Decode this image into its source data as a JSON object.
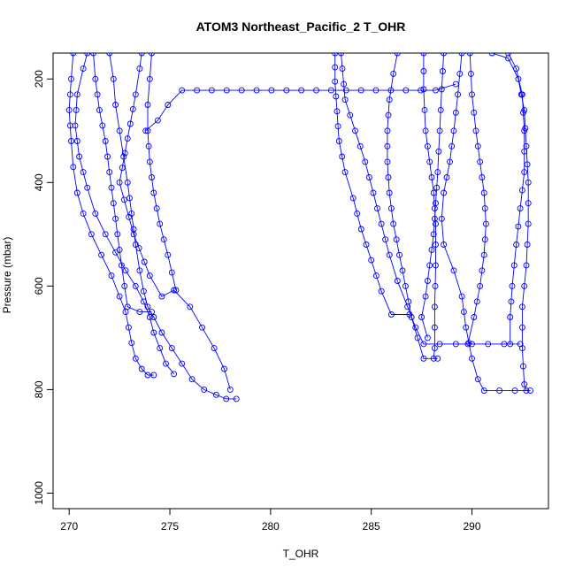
{
  "chart_data": {
    "type": "line",
    "title": "ATOM3 Northeast_Pacific_2 T_OHR",
    "xlabel": "T_OHR",
    "ylabel": "Pressure (mbar)",
    "xlim": [
      269.2,
      293.8
    ],
    "ylim": [
      1030,
      150
    ],
    "y_reversed": true,
    "xticks": [
      270,
      275,
      280,
      285,
      290
    ],
    "yticks": [
      200,
      400,
      600,
      800,
      1000
    ],
    "grid": false,
    "marker": "open-circle",
    "color": "#0000ff",
    "series": [
      {
        "points": [
          [
            270.2,
            150
          ],
          [
            270.1,
            200
          ],
          [
            270.0,
            260
          ],
          [
            270.1,
            320
          ],
          [
            270.2,
            370
          ],
          [
            270.4,
            420
          ],
          [
            270.7,
            460
          ],
          [
            271.1,
            500
          ],
          [
            271.6,
            540
          ],
          [
            272.1,
            580
          ],
          [
            272.5,
            620
          ],
          [
            272.8,
            650
          ],
          [
            272.95,
            680
          ],
          [
            273.1,
            710
          ],
          [
            273.3,
            740
          ],
          [
            273.6,
            760
          ],
          [
            273.9,
            772
          ],
          [
            274.2,
            772
          ]
        ]
      },
      {
        "points": [
          [
            270.9,
            150
          ],
          [
            270.7,
            180
          ],
          [
            270.4,
            230
          ],
          [
            270.3,
            290
          ],
          [
            270.5,
            350
          ],
          [
            270.9,
            410
          ],
          [
            271.3,
            460
          ],
          [
            271.8,
            500
          ],
          [
            272.3,
            535
          ],
          [
            272.8,
            570
          ],
          [
            273.3,
            600
          ],
          [
            273.7,
            630
          ],
          [
            274.0,
            660
          ],
          [
            274.2,
            690
          ],
          [
            274.5,
            720
          ],
          [
            274.8,
            750
          ],
          [
            275.2,
            770
          ]
        ]
      },
      {
        "points": [
          [
            271.2,
            150
          ],
          [
            271.3,
            200
          ],
          [
            271.5,
            260
          ],
          [
            271.8,
            320
          ],
          [
            272.0,
            380
          ],
          [
            272.2,
            440
          ],
          [
            272.4,
            500
          ],
          [
            272.6,
            560
          ],
          [
            272.75,
            600
          ],
          [
            272.9,
            640
          ],
          [
            273.5,
            650
          ],
          [
            274.1,
            650
          ]
        ]
      },
      {
        "points": [
          [
            272.0,
            150
          ],
          [
            272.2,
            200
          ],
          [
            272.3,
            250
          ],
          [
            272.5,
            300
          ],
          [
            272.7,
            350
          ],
          [
            272.9,
            400
          ],
          [
            273.1,
            460
          ],
          [
            273.3,
            520
          ],
          [
            273.5,
            570
          ],
          [
            273.7,
            610
          ],
          [
            273.9,
            640
          ],
          [
            274.2,
            660
          ],
          [
            274.6,
            690
          ],
          [
            275.1,
            720
          ],
          [
            275.6,
            750
          ],
          [
            276.1,
            780
          ],
          [
            276.7,
            800
          ],
          [
            277.3,
            810
          ],
          [
            277.8,
            818
          ],
          [
            278.3,
            818
          ]
        ]
      },
      {
        "points": [
          [
            273.6,
            150
          ],
          [
            273.5,
            180
          ],
          [
            273.3,
            230
          ],
          [
            272.5,
            400
          ],
          [
            273.2,
            500
          ],
          [
            274.0,
            580
          ],
          [
            274.6,
            620
          ],
          [
            275.2,
            608
          ],
          [
            276.0,
            640
          ],
          [
            276.6,
            680
          ],
          [
            277.2,
            720
          ],
          [
            277.7,
            760
          ],
          [
            278.0,
            800
          ]
        ]
      },
      {
        "points": [
          [
            274.1,
            150
          ],
          [
            274.0,
            200
          ],
          [
            273.9,
            250
          ],
          [
            273.9,
            300
          ],
          [
            274.0,
            360
          ],
          [
            274.2,
            420
          ],
          [
            274.5,
            480
          ],
          [
            274.9,
            540
          ],
          [
            275.3,
            608
          ]
        ]
      },
      {
        "points": [
          [
            273.8,
            300
          ],
          [
            274.4,
            280
          ],
          [
            274.9,
            250
          ],
          [
            275.6,
            222
          ],
          [
            288.2,
            222
          ],
          [
            289.2,
            210
          ]
        ]
      },
      {
        "points": [
          [
            283.2,
            150
          ],
          [
            283.2,
            205
          ],
          [
            283.4,
            320
          ],
          [
            283.7,
            380
          ],
          [
            284.1,
            430
          ],
          [
            284.5,
            490
          ],
          [
            285.0,
            550
          ],
          [
            285.5,
            610
          ],
          [
            286.0,
            655
          ],
          [
            286.9,
            655
          ]
        ]
      },
      {
        "points": [
          [
            283.5,
            150
          ],
          [
            283.7,
            240
          ],
          [
            284.2,
            300
          ],
          [
            284.7,
            360
          ],
          [
            285.1,
            420
          ],
          [
            285.5,
            480
          ],
          [
            285.9,
            540
          ],
          [
            286.3,
            590
          ],
          [
            286.8,
            640
          ],
          [
            287.2,
            680
          ],
          [
            287.6,
            712
          ],
          [
            292.4,
            712
          ]
        ]
      },
      {
        "points": [
          [
            286.3,
            150
          ],
          [
            286.1,
            190
          ],
          [
            285.9,
            240
          ],
          [
            285.8,
            300
          ],
          [
            285.8,
            360
          ],
          [
            285.9,
            420
          ],
          [
            286.1,
            480
          ],
          [
            286.4,
            540
          ],
          [
            286.7,
            600
          ],
          [
            287.0,
            660
          ],
          [
            287.3,
            700
          ],
          [
            287.6,
            740
          ],
          [
            288.3,
            740
          ]
        ]
      },
      {
        "points": [
          [
            287.6,
            150
          ],
          [
            287.6,
            220
          ],
          [
            287.7,
            300
          ],
          [
            287.9,
            360
          ],
          [
            288.1,
            420
          ],
          [
            288.2,
            480
          ],
          [
            288.2,
            560
          ],
          [
            288.15,
            640
          ],
          [
            288.15,
            720
          ],
          [
            288.1,
            740
          ]
        ]
      },
      {
        "points": [
          [
            288.6,
            150
          ],
          [
            288.5,
            220
          ],
          [
            288.4,
            300
          ],
          [
            288.3,
            380
          ],
          [
            288.2,
            440
          ],
          [
            288.1,
            500
          ],
          [
            287.9,
            560
          ],
          [
            287.7,
            620
          ],
          [
            287.5,
            660
          ],
          [
            287.8,
            700
          ]
        ]
      },
      {
        "points": [
          [
            289.5,
            150
          ],
          [
            289.3,
            230
          ],
          [
            289.1,
            300
          ],
          [
            288.9,
            360
          ],
          [
            288.6,
            420
          ],
          [
            288.5,
            470
          ],
          [
            288.6,
            520
          ],
          [
            289.1,
            570
          ],
          [
            289.5,
            620
          ],
          [
            289.7,
            680
          ],
          [
            290.0,
            740
          ],
          [
            290.3,
            780
          ],
          [
            290.6,
            802
          ],
          [
            292.9,
            802
          ]
        ]
      },
      {
        "points": [
          [
            289.9,
            150
          ],
          [
            290.0,
            230
          ],
          [
            290.2,
            300
          ],
          [
            290.4,
            360
          ],
          [
            290.6,
            420
          ],
          [
            290.7,
            480
          ],
          [
            290.6,
            540
          ],
          [
            290.4,
            600
          ],
          [
            290.1,
            660
          ],
          [
            289.8,
            712
          ]
        ]
      },
      {
        "points": [
          [
            291.8,
            150
          ],
          [
            292.2,
            180
          ],
          [
            292.5,
            230
          ],
          [
            292.6,
            300
          ],
          [
            292.6,
            380
          ],
          [
            292.4,
            450
          ],
          [
            292.2,
            520
          ],
          [
            292.0,
            600
          ],
          [
            291.9,
            660
          ],
          [
            291.9,
            712
          ]
        ]
      },
      {
        "points": [
          [
            291.0,
            150
          ],
          [
            291.8,
            160
          ],
          [
            292.3,
            200
          ],
          [
            292.6,
            260
          ],
          [
            292.7,
            330
          ],
          [
            292.8,
            400
          ],
          [
            292.8,
            480
          ],
          [
            292.7,
            560
          ],
          [
            292.5,
            640
          ],
          [
            292.5,
            720
          ],
          [
            292.6,
            790
          ],
          [
            292.7,
            802
          ]
        ]
      }
    ]
  }
}
